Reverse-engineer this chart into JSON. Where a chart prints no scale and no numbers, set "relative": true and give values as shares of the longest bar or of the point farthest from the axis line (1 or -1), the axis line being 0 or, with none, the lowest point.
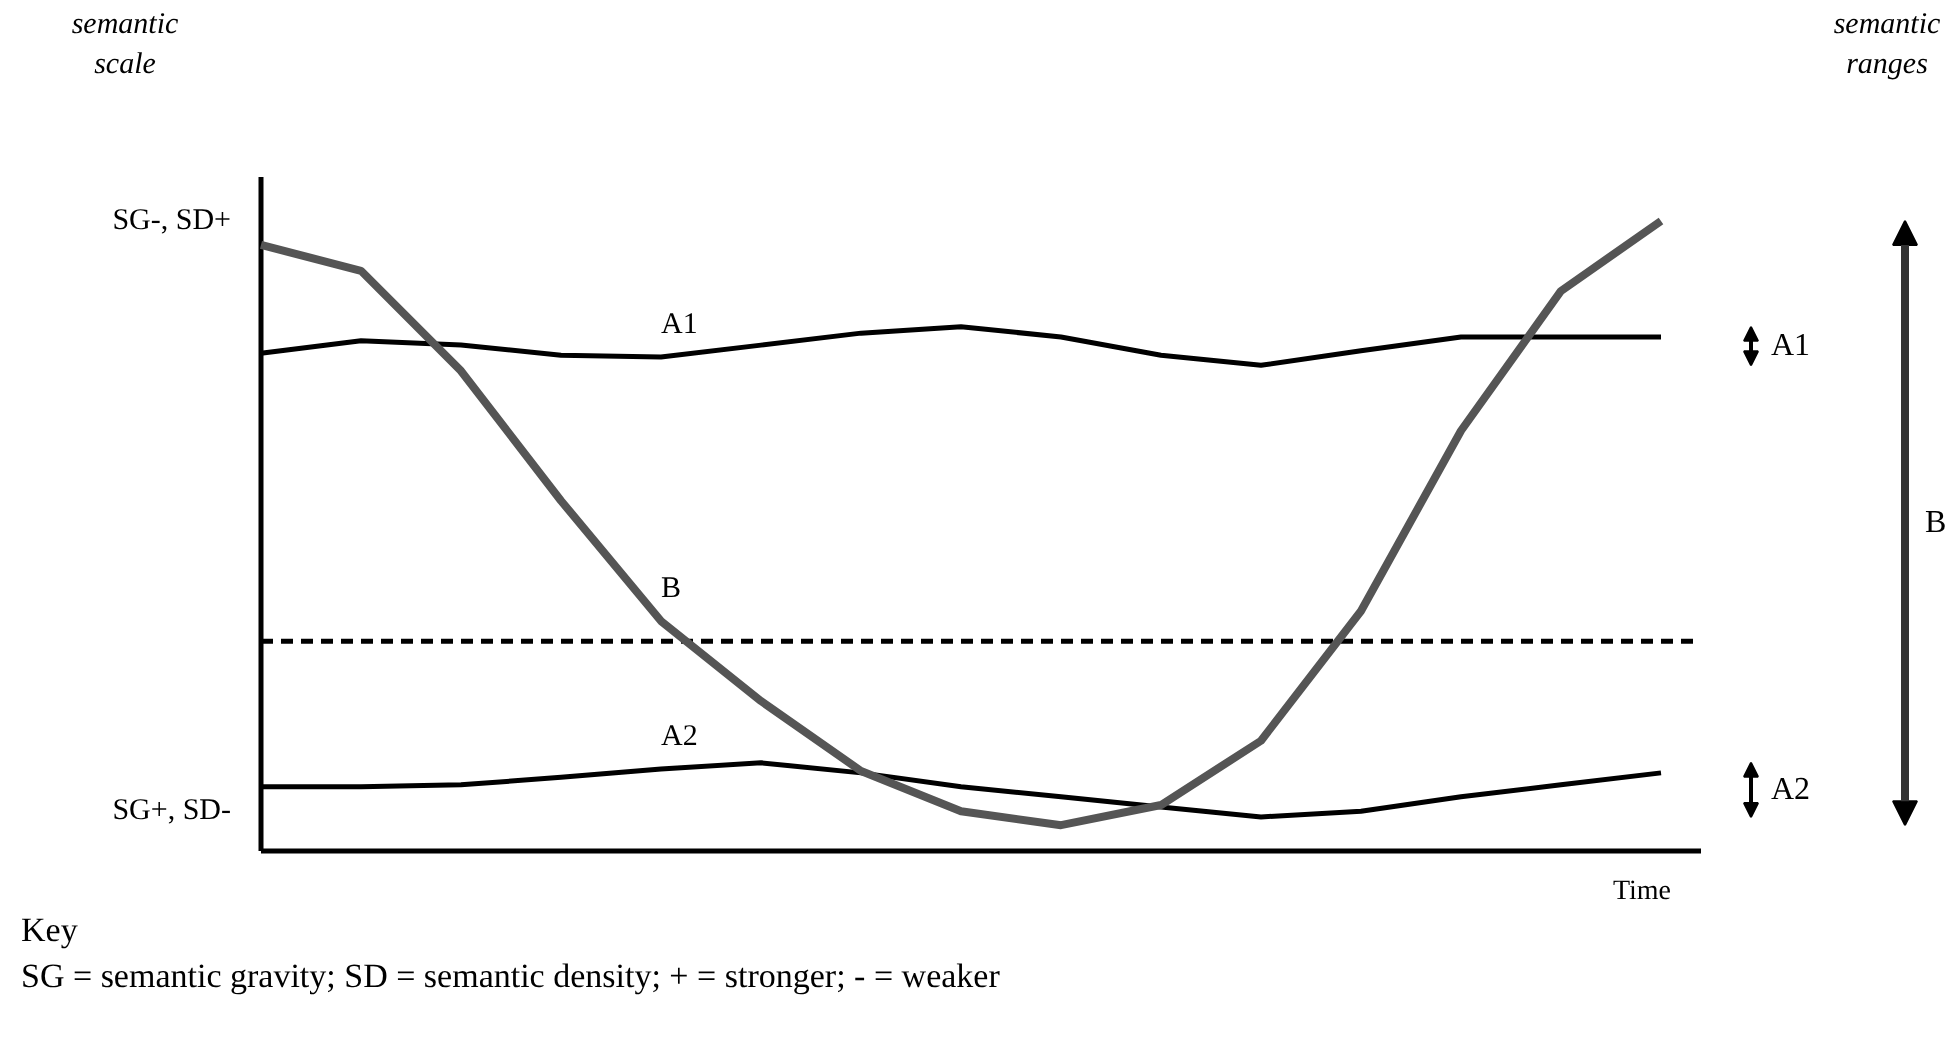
{
  "chart_data": {
    "type": "line",
    "relative": true,
    "xlabel": "Time",
    "legend": "right",
    "categories": [
      null,
      null,
      null,
      null,
      null,
      null,
      null,
      null,
      null,
      null,
      null,
      null,
      null,
      null,
      null
    ],
    "series": [
      {
        "name": "A1",
        "color": "#000000",
        "values": [
          0.79,
          0.81,
          0.803,
          0.787,
          0.784,
          0.803,
          0.822,
          0.832,
          0.816,
          0.787,
          0.771,
          0.794,
          0.816,
          0.816,
          0.816
        ]
      },
      {
        "name": "A2",
        "color": "#000000",
        "values": [
          0.102,
          0.102,
          0.105,
          0.117,
          0.13,
          0.14,
          0.124,
          0.102,
          0.086,
          0.07,
          0.054,
          0.063,
          0.086,
          0.105,
          0.124
        ]
      },
      {
        "name": "B",
        "color": "#555555",
        "values": [
          0.962,
          0.921,
          0.762,
          0.556,
          0.365,
          0.238,
          0.127,
          0.063,
          0.041,
          0.073,
          0.175,
          0.381,
          0.667,
          0.889,
          1.0
        ]
      }
    ],
    "ref_lines": [
      {
        "axis": "y",
        "value": 0.333,
        "line_style": "dashed",
        "color": "#000000"
      }
    ],
    "annotations": [
      "semantic scale",
      "semantic ranges",
      "SG-, SD+",
      "SG+, SD-",
      "Key",
      "SG = semantic gravity; SD = semantic density; + = stronger; - = weaker"
    ]
  }
}
